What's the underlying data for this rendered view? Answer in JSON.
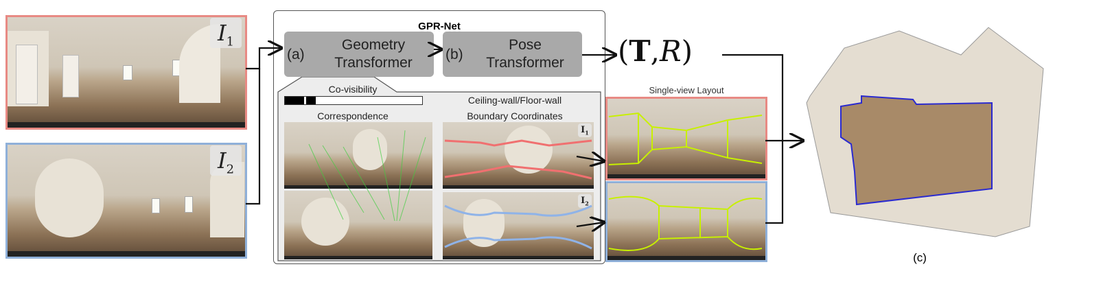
{
  "inputs": {
    "image1_label": "I",
    "image1_sub": "1",
    "image2_label": "I",
    "image2_sub": "2",
    "image1_border": "#e88a84",
    "image2_border": "#8fb0d9"
  },
  "network": {
    "title": "GPR-Net",
    "geometry": {
      "tag": "(a)",
      "line1": "Geometry",
      "line2": "Transformer"
    },
    "pose": {
      "tag": "(b)",
      "line1": "Pose",
      "line2": "Transformer"
    },
    "box_color": "#a9a9a9"
  },
  "details": {
    "covisibility_label": "Co-visibility",
    "correspondence_label": "Correspondence",
    "boundary_label_line1": "Ceiling-wall/Floor-wall",
    "boundary_label_line2": "Boundary Coordinates",
    "boundary_tag1": "I",
    "boundary_tag1_sub": "1",
    "boundary_tag2": "I",
    "boundary_tag2_sub": "2",
    "correspondence_color": "#3fcf3f",
    "boundary1_color": "#f07070",
    "boundary2_color": "#8fb3e8"
  },
  "output": {
    "pose_text_open": "(",
    "pose_T": "T",
    "pose_sep": ",",
    "pose_R": "R",
    "pose_text_close": ")",
    "single_view_label": "Single-view Layout",
    "layout_color": "#c8f000",
    "result_label": "(c)",
    "floorplan_outline_color": "#2a2ad0"
  }
}
